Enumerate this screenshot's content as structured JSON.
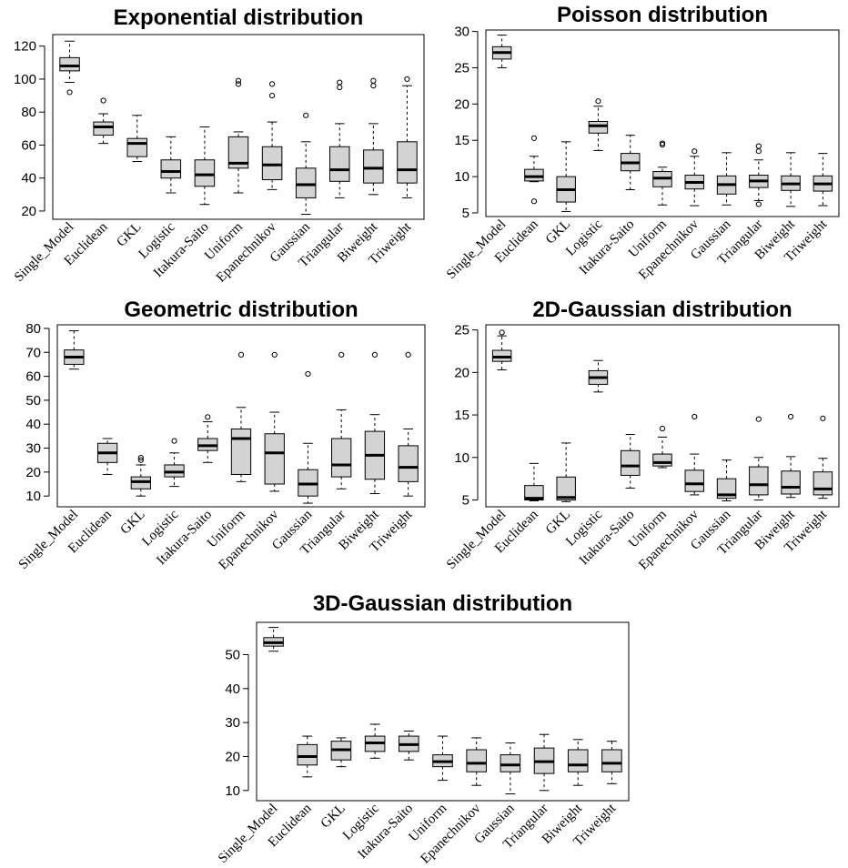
{
  "chart_data": [
    {
      "type": "box",
      "title": "Exponential distribution",
      "categories": [
        "Single_Model",
        "Euclidean",
        "GKL",
        "Logistic",
        "Itakura-Saito",
        "Uniform",
        "Epanechnikov",
        "Gaussian",
        "Triangular",
        "Biweight",
        "Triweight"
      ],
      "ylim": [
        15,
        127
      ],
      "yticks": [
        20,
        40,
        60,
        80,
        100,
        120
      ],
      "boxes": [
        {
          "min": 98,
          "q1": 105,
          "median": 108,
          "q3": 113,
          "max": 123,
          "outliers": [
            92
          ]
        },
        {
          "min": 61,
          "q1": 66,
          "median": 71,
          "q3": 74,
          "max": 79,
          "outliers": [
            87
          ]
        },
        {
          "min": 50,
          "q1": 53,
          "median": 61,
          "q3": 64,
          "max": 78,
          "outliers": []
        },
        {
          "min": 31,
          "q1": 40,
          "median": 44,
          "q3": 51,
          "max": 65,
          "outliers": []
        },
        {
          "min": 24,
          "q1": 35,
          "median": 42,
          "q3": 51,
          "max": 71,
          "outliers": []
        },
        {
          "min": 31,
          "q1": 46,
          "median": 49,
          "q3": 65,
          "max": 68,
          "outliers": [
            97,
            99
          ]
        },
        {
          "min": 33,
          "q1": 39,
          "median": 48,
          "q3": 59,
          "max": 74,
          "outliers": [
            90,
            97
          ]
        },
        {
          "min": 18,
          "q1": 28,
          "median": 36,
          "q3": 46,
          "max": 62,
          "outliers": [
            78
          ]
        },
        {
          "min": 28,
          "q1": 38,
          "median": 45,
          "q3": 59,
          "max": 73,
          "outliers": [
            95,
            98
          ]
        },
        {
          "min": 30,
          "q1": 37,
          "median": 46,
          "q3": 57,
          "max": 73,
          "outliers": [
            96,
            99
          ]
        },
        {
          "min": 28,
          "q1": 37,
          "median": 45,
          "q3": 62,
          "max": 96,
          "outliers": [
            100
          ]
        }
      ]
    },
    {
      "type": "box",
      "title": "Poisson distribution",
      "categories": [
        "Single_Model",
        "Euclidean",
        "GKL",
        "Logistic",
        "Itakura-Saito",
        "Uniform",
        "Epanechnikov",
        "Gaussian",
        "Triangular",
        "Biweight",
        "Triweight"
      ],
      "ylim": [
        4.5,
        30.2
      ],
      "yticks": [
        5,
        10,
        15,
        20,
        25,
        30
      ],
      "boxes": [
        {
          "min": 25.0,
          "q1": 26.2,
          "median": 27.1,
          "q3": 27.9,
          "max": 29.5,
          "outliers": []
        },
        {
          "min": 9.3,
          "q1": 9.4,
          "median": 10.0,
          "q3": 11.0,
          "max": 12.8,
          "outliers": [
            6.6,
            15.3
          ]
        },
        {
          "min": 5.2,
          "q1": 6.5,
          "median": 8.2,
          "q3": 10.0,
          "max": 14.8,
          "outliers": []
        },
        {
          "min": 13.6,
          "q1": 16.0,
          "median": 17.0,
          "q3": 17.6,
          "max": 19.7,
          "outliers": [
            20.4
          ]
        },
        {
          "min": 8.2,
          "q1": 10.8,
          "median": 11.9,
          "q3": 13.2,
          "max": 15.7,
          "outliers": []
        },
        {
          "min": 6.1,
          "q1": 8.6,
          "median": 9.8,
          "q3": 10.7,
          "max": 11.3,
          "outliers": [
            14.4,
            14.6
          ]
        },
        {
          "min": 6.0,
          "q1": 8.3,
          "median": 9.2,
          "q3": 10.2,
          "max": 12.8,
          "outliers": [
            13.5
          ]
        },
        {
          "min": 6.1,
          "q1": 7.6,
          "median": 8.9,
          "q3": 10.1,
          "max": 13.3,
          "outliers": []
        },
        {
          "min": 6.7,
          "q1": 8.5,
          "median": 9.4,
          "q3": 10.2,
          "max": 12.3,
          "outliers": [
            6.2,
            13.5,
            14.2
          ]
        },
        {
          "min": 5.9,
          "q1": 8.1,
          "median": 9.0,
          "q3": 10.1,
          "max": 13.3,
          "outliers": []
        },
        {
          "min": 6.0,
          "q1": 8.0,
          "median": 9.0,
          "q3": 10.1,
          "max": 13.2,
          "outliers": []
        }
      ]
    },
    {
      "type": "box",
      "title": "Geometric distribution",
      "categories": [
        "Single_Model",
        "Euclidean",
        "GKL",
        "Logistic",
        "Itakura-Saito",
        "Uniform",
        "Epanechnikov",
        "Gaussian",
        "Triangular",
        "Biweight",
        "Triweight"
      ],
      "ylim": [
        5.5,
        81.5
      ],
      "yticks": [
        10,
        20,
        30,
        40,
        50,
        60,
        70,
        80
      ],
      "boxes": [
        {
          "min": 63,
          "q1": 65,
          "median": 68,
          "q3": 71,
          "max": 79,
          "outliers": []
        },
        {
          "min": 19,
          "q1": 24,
          "median": 28,
          "q3": 32,
          "max": 34,
          "outliers": []
        },
        {
          "min": 10,
          "q1": 13,
          "median": 16,
          "q3": 18,
          "max": 23,
          "outliers": [
            25,
            26
          ]
        },
        {
          "min": 14,
          "q1": 18,
          "median": 20,
          "q3": 23,
          "max": 28,
          "outliers": [
            33
          ]
        },
        {
          "min": 24,
          "q1": 29,
          "median": 31,
          "q3": 34,
          "max": 41,
          "outliers": [
            43
          ]
        },
        {
          "min": 16,
          "q1": 19,
          "median": 34,
          "q3": 38,
          "max": 47,
          "outliers": [
            69
          ]
        },
        {
          "min": 12,
          "q1": 15,
          "median": 28,
          "q3": 36,
          "max": 45,
          "outliers": [
            69
          ]
        },
        {
          "min": 7,
          "q1": 10,
          "median": 15,
          "q3": 21,
          "max": 32,
          "outliers": [
            61
          ]
        },
        {
          "min": 13,
          "q1": 18,
          "median": 23,
          "q3": 34,
          "max": 46,
          "outliers": [
            69
          ]
        },
        {
          "min": 11,
          "q1": 17,
          "median": 27,
          "q3": 37,
          "max": 44,
          "outliers": [
            69
          ]
        },
        {
          "min": 10,
          "q1": 16,
          "median": 22,
          "q3": 31,
          "max": 38,
          "outliers": [
            69
          ]
        }
      ]
    },
    {
      "type": "box",
      "title": "2D-Gaussian distribution",
      "categories": [
        "Single_Model",
        "Euclidean",
        "GKL",
        "Logistic",
        "Itakura-Saito",
        "Uniform",
        "Epanechnikov",
        "Gaussian",
        "Triangular",
        "Biweight",
        "Triweight"
      ],
      "ylim": [
        4.2,
        25.6
      ],
      "yticks": [
        5,
        10,
        15,
        20,
        25
      ],
      "boxes": [
        {
          "min": 20.3,
          "q1": 21.3,
          "median": 21.8,
          "q3": 22.6,
          "max": 24.3,
          "outliers": [
            24.7
          ]
        },
        {
          "min": 4.9,
          "q1": 5.0,
          "median": 5.2,
          "q3": 6.7,
          "max": 9.3,
          "outliers": []
        },
        {
          "min": 4.8,
          "q1": 5.0,
          "median": 5.3,
          "q3": 7.7,
          "max": 11.7,
          "outliers": []
        },
        {
          "min": 17.7,
          "q1": 18.6,
          "median": 19.4,
          "q3": 20.2,
          "max": 21.4,
          "outliers": []
        },
        {
          "min": 6.4,
          "q1": 7.9,
          "median": 9.0,
          "q3": 10.8,
          "max": 12.7,
          "outliers": []
        },
        {
          "min": 8.8,
          "q1": 9.0,
          "median": 9.4,
          "q3": 10.4,
          "max": 12.4,
          "outliers": [
            13.4
          ]
        },
        {
          "min": 5.6,
          "q1": 6.0,
          "median": 6.9,
          "q3": 8.5,
          "max": 10.4,
          "outliers": [
            14.8
          ]
        },
        {
          "min": 4.9,
          "q1": 5.2,
          "median": 5.6,
          "q3": 7.5,
          "max": 9.7,
          "outliers": []
        },
        {
          "min": 5.0,
          "q1": 5.6,
          "median": 6.8,
          "q3": 8.9,
          "max": 10.0,
          "outliers": [
            14.5
          ]
        },
        {
          "min": 5.3,
          "q1": 5.7,
          "median": 6.5,
          "q3": 8.4,
          "max": 10.1,
          "outliers": [
            14.8
          ]
        },
        {
          "min": 5.2,
          "q1": 5.6,
          "median": 6.3,
          "q3": 8.3,
          "max": 9.9,
          "outliers": [
            14.6
          ]
        }
      ]
    },
    {
      "type": "box",
      "title": "3D-Gaussian distribution",
      "categories": [
        "Single_Model",
        "Euclidean",
        "GKL",
        "Logistic",
        "Itakura-Saito",
        "Uniform",
        "Epanechnikov",
        "Gaussian",
        "Triangular",
        "Biweight",
        "Triweight"
      ],
      "ylim": [
        7,
        59.5
      ],
      "yticks": [
        10,
        20,
        30,
        40,
        50
      ],
      "boxes": [
        {
          "min": 51,
          "q1": 52.5,
          "median": 53.5,
          "q3": 55,
          "max": 58,
          "outliers": []
        },
        {
          "min": 14,
          "q1": 17.5,
          "median": 20,
          "q3": 23.5,
          "max": 26,
          "outliers": []
        },
        {
          "min": 17,
          "q1": 19,
          "median": 22,
          "q3": 24.5,
          "max": 25.5,
          "outliers": []
        },
        {
          "min": 19.5,
          "q1": 21.5,
          "median": 24,
          "q3": 26,
          "max": 29.5,
          "outliers": []
        },
        {
          "min": 19,
          "q1": 21.5,
          "median": 23.5,
          "q3": 26,
          "max": 27.5,
          "outliers": []
        },
        {
          "min": 13,
          "q1": 17,
          "median": 18.5,
          "q3": 20.5,
          "max": 26,
          "outliers": []
        },
        {
          "min": 11.5,
          "q1": 15.5,
          "median": 18,
          "q3": 22,
          "max": 25.5,
          "outliers": []
        },
        {
          "min": 9,
          "q1": 15.5,
          "median": 17.5,
          "q3": 20.5,
          "max": 24,
          "outliers": []
        },
        {
          "min": 10,
          "q1": 15,
          "median": 18.5,
          "q3": 22.5,
          "max": 26.5,
          "outliers": []
        },
        {
          "min": 11.5,
          "q1": 15.5,
          "median": 17.5,
          "q3": 22,
          "max": 25,
          "outliers": []
        },
        {
          "min": 12,
          "q1": 15.5,
          "median": 18,
          "q3": 22,
          "max": 24.5,
          "outliers": []
        }
      ]
    }
  ],
  "colors": {
    "box_fill": "#d3d3d3",
    "stroke": "#000000",
    "background": "#ffffff"
  }
}
